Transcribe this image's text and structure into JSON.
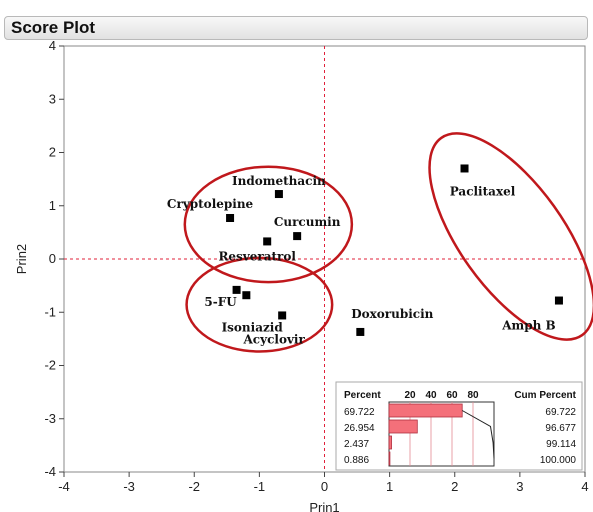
{
  "window": {
    "title": "Score Plot"
  },
  "chart_data": {
    "type": "scatter",
    "title": "",
    "xlabel": "Prin1",
    "ylabel": "Prin2",
    "xlim": [
      -4,
      4
    ],
    "ylim": [
      -4,
      4
    ],
    "x_ticks": [
      -4,
      -3,
      -2,
      -1,
      0,
      1,
      2,
      3,
      4
    ],
    "y_ticks": [
      -4,
      -3,
      -2,
      -1,
      0,
      1,
      2,
      3,
      4
    ],
    "reference_lines": {
      "x": 0,
      "y": 0,
      "color": "#e0203a",
      "style": "dashed"
    },
    "marker_color": "#000000",
    "group_ellipse_color": "#c0181c",
    "points": [
      {
        "label": "Indomethacin",
        "x": -0.7,
        "y": 1.22
      },
      {
        "label": "Cryptolepine",
        "x": -1.45,
        "y": 0.77
      },
      {
        "label": "Curcumin",
        "x": -0.42,
        "y": 0.43
      },
      {
        "label": "Resveratrol",
        "x": -0.88,
        "y": 0.33
      },
      {
        "label": "5-FU",
        "x": -1.35,
        "y": -0.58
      },
      {
        "label": "",
        "x": -1.2,
        "y": -0.68
      },
      {
        "label": "Isoniazid",
        "x": -0.65,
        "y": -1.06
      },
      {
        "label": "Acyclovir",
        "x": -0.65,
        "y": -1.06
      },
      {
        "label": "Doxorubicin",
        "x": 0.55,
        "y": -1.37
      },
      {
        "label": "Paclitaxel",
        "x": 2.15,
        "y": 1.7
      },
      {
        "label": "Amph B",
        "x": 3.6,
        "y": -0.78
      }
    ],
    "groups": [
      {
        "members": [
          "Indomethacin",
          "Cryptolepine",
          "Curcumin",
          "Resveratrol"
        ]
      },
      {
        "members": [
          "5-FU",
          "Isoniazid"
        ]
      },
      {
        "members": [
          "Paclitaxel",
          "Amph B"
        ]
      }
    ],
    "eigen_table": {
      "headers": {
        "percent": "Percent",
        "cum_percent": "Cum Percent"
      },
      "bar_axis_ticks": [
        "20",
        "40",
        "60",
        "80"
      ],
      "rows": [
        {
          "percent": "69.722",
          "cum": "69.722",
          "value": 69.722
        },
        {
          "percent": "26.954",
          "cum": "96.677",
          "value": 26.954
        },
        {
          "percent": "2.437",
          "cum": "99.114",
          "value": 2.437
        },
        {
          "percent": "0.886",
          "cum": "100.000",
          "value": 0.886
        }
      ],
      "bar_color": "#f4707a"
    }
  }
}
